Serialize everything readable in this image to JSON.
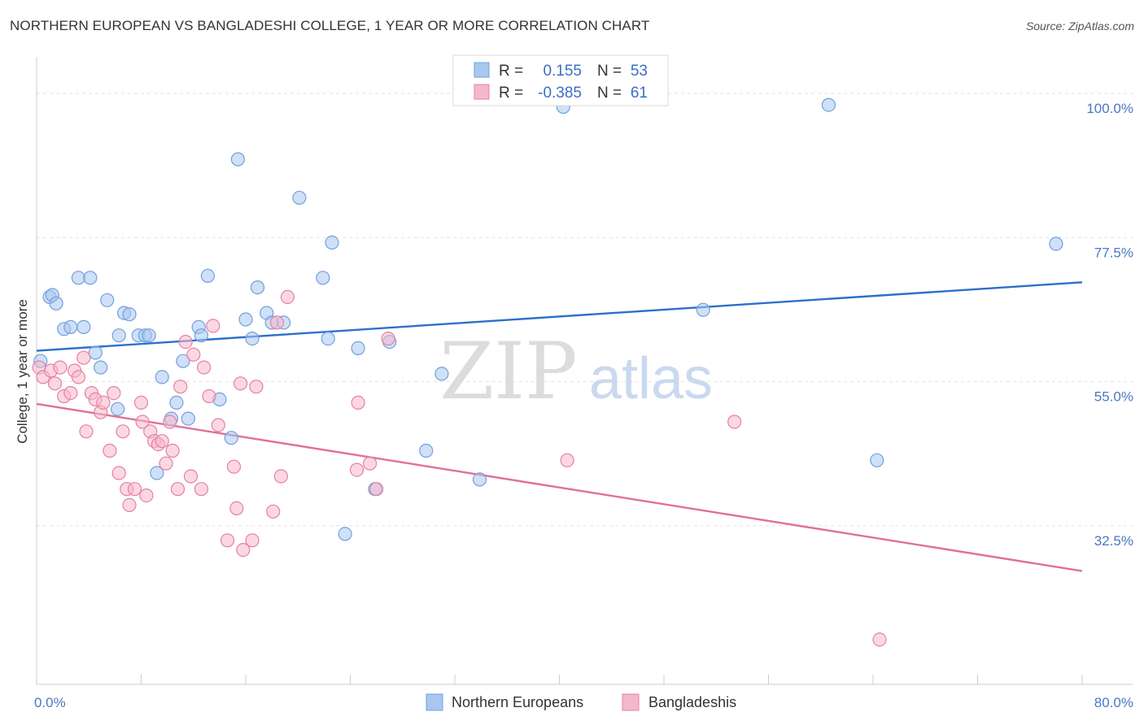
{
  "header": {
    "title": "NORTHERN EUROPEAN VS BANGLADESHI COLLEGE, 1 YEAR OR MORE CORRELATION CHART",
    "source": "Source: ZipAtlas.com"
  },
  "watermark": {
    "zip": "ZIP",
    "atlas": "atlas"
  },
  "legend": {
    "rows": [
      {
        "r_label": "R =",
        "r_value": "0.155",
        "n_label": "N =",
        "n_value": "53",
        "color": "#a9c7ef"
      },
      {
        "r_label": "R =",
        "r_value": "-0.385",
        "n_label": "N =",
        "n_value": "61",
        "color": "#f5b8cb"
      }
    ]
  },
  "bottom_legend": {
    "items": [
      {
        "label": "Northern Europeans",
        "color": "#a9c7ef"
      },
      {
        "label": "Bangladeshis",
        "color": "#f5b8cb"
      }
    ]
  },
  "chart_data": {
    "type": "scatter",
    "xlabel": "",
    "ylabel": "College, 1 year or more",
    "xlim": [
      0,
      80
    ],
    "ylim": [
      10,
      108
    ],
    "x_tick_labels": [
      "0.0%",
      "80.0%"
    ],
    "y_ticks": [
      32.5,
      55.0,
      77.5,
      100.0
    ],
    "y_tick_labels": [
      "32.5%",
      "55.0%",
      "77.5%",
      "100.0%"
    ],
    "grid": true,
    "series": [
      {
        "name": "Northern Europeans",
        "color": "#6fa0e0",
        "fill": "#a9c7ef",
        "trend": {
          "x": [
            0,
            80
          ],
          "y": [
            62.1,
            72.8
          ]
        },
        "points": [
          [
            0.3,
            60.5
          ],
          [
            1.0,
            70.5
          ],
          [
            1.2,
            70.8
          ],
          [
            1.5,
            69.5
          ],
          [
            2.1,
            65.5
          ],
          [
            2.6,
            65.8
          ],
          [
            3.2,
            73.5
          ],
          [
            3.6,
            65.8
          ],
          [
            4.1,
            73.5
          ],
          [
            4.5,
            61.8
          ],
          [
            4.9,
            59.5
          ],
          [
            5.4,
            70.0
          ],
          [
            6.2,
            53.0
          ],
          [
            6.3,
            64.5
          ],
          [
            6.7,
            68.0
          ],
          [
            7.1,
            67.8
          ],
          [
            7.8,
            64.5
          ],
          [
            8.3,
            64.5
          ],
          [
            8.6,
            64.5
          ],
          [
            9.6,
            58.0
          ],
          [
            9.2,
            43.0
          ],
          [
            10.3,
            51.5
          ],
          [
            10.7,
            54.0
          ],
          [
            11.2,
            60.5
          ],
          [
            11.6,
            51.5
          ],
          [
            12.4,
            65.8
          ],
          [
            12.6,
            64.5
          ],
          [
            13.1,
            73.8
          ],
          [
            14.0,
            54.5
          ],
          [
            14.9,
            48.5
          ],
          [
            15.4,
            92.0
          ],
          [
            16.0,
            67.0
          ],
          [
            16.5,
            64.0
          ],
          [
            16.9,
            72.0
          ],
          [
            17.6,
            68.0
          ],
          [
            18.0,
            66.5
          ],
          [
            18.9,
            66.5
          ],
          [
            20.1,
            86.0
          ],
          [
            21.9,
            73.5
          ],
          [
            22.3,
            64.0
          ],
          [
            22.6,
            79.0
          ],
          [
            23.6,
            33.5
          ],
          [
            24.6,
            62.5
          ],
          [
            25.9,
            40.5
          ],
          [
            27.0,
            63.5
          ],
          [
            29.8,
            46.5
          ],
          [
            31.0,
            58.5
          ],
          [
            33.9,
            42.0
          ],
          [
            40.3,
            100.2
          ],
          [
            51.0,
            68.5
          ],
          [
            60.6,
            100.5
          ],
          [
            64.3,
            45.0
          ],
          [
            78.0,
            78.8
          ]
        ]
      },
      {
        "name": "Bangladeshis",
        "color": "#e87fa3",
        "fill": "#f5b8cb",
        "trend": {
          "x": [
            0,
            80
          ],
          "y": [
            53.8,
            27.7
          ]
        },
        "points": [
          [
            0.2,
            59.5
          ],
          [
            0.5,
            58.0
          ],
          [
            1.1,
            59.0
          ],
          [
            1.4,
            57.0
          ],
          [
            1.8,
            59.5
          ],
          [
            2.1,
            55.0
          ],
          [
            2.6,
            55.5
          ],
          [
            2.9,
            59.0
          ],
          [
            3.2,
            58.0
          ],
          [
            3.6,
            61.0
          ],
          [
            3.8,
            49.5
          ],
          [
            4.2,
            55.5
          ],
          [
            4.5,
            54.5
          ],
          [
            4.9,
            52.5
          ],
          [
            5.1,
            54.0
          ],
          [
            5.6,
            46.5
          ],
          [
            5.9,
            55.5
          ],
          [
            6.3,
            43.0
          ],
          [
            6.6,
            49.5
          ],
          [
            6.9,
            40.5
          ],
          [
            7.1,
            38.0
          ],
          [
            7.5,
            40.5
          ],
          [
            8.0,
            54.0
          ],
          [
            8.1,
            51.0
          ],
          [
            8.4,
            39.5
          ],
          [
            8.7,
            49.5
          ],
          [
            9.0,
            48.0
          ],
          [
            9.3,
            47.5
          ],
          [
            9.6,
            48.0
          ],
          [
            9.9,
            44.5
          ],
          [
            10.2,
            51.0
          ],
          [
            10.4,
            46.5
          ],
          [
            10.8,
            40.5
          ],
          [
            11.0,
            56.5
          ],
          [
            11.4,
            63.5
          ],
          [
            11.8,
            42.5
          ],
          [
            12.0,
            61.5
          ],
          [
            12.6,
            40.5
          ],
          [
            12.8,
            59.5
          ],
          [
            13.2,
            55.0
          ],
          [
            13.5,
            66.0
          ],
          [
            13.9,
            50.5
          ],
          [
            14.6,
            32.5
          ],
          [
            15.1,
            44.0
          ],
          [
            15.3,
            37.5
          ],
          [
            15.6,
            57.0
          ],
          [
            15.8,
            31.0
          ],
          [
            16.5,
            32.5
          ],
          [
            16.8,
            56.5
          ],
          [
            18.1,
            37.0
          ],
          [
            18.4,
            66.5
          ],
          [
            18.7,
            42.5
          ],
          [
            19.2,
            70.5
          ],
          [
            24.5,
            43.5
          ],
          [
            24.6,
            54.0
          ],
          [
            25.5,
            44.5
          ],
          [
            26.0,
            40.5
          ],
          [
            26.9,
            64.0
          ],
          [
            40.6,
            45.0
          ],
          [
            53.4,
            51.0
          ],
          [
            64.5,
            17.0
          ]
        ]
      }
    ]
  }
}
